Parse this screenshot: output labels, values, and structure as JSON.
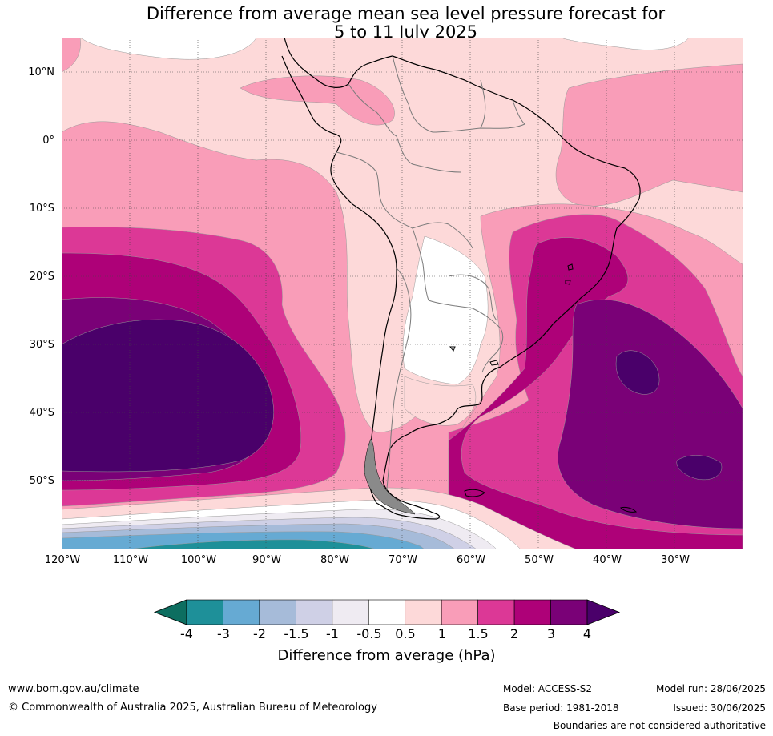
{
  "title_line1": "Difference from average mean sea level pressure forecast for",
  "title_line2": "5 to 11 July 2025",
  "lat_labels": [
    "10°N",
    "0°",
    "10°S",
    "20°S",
    "30°S",
    "40°S",
    "50°S"
  ],
  "lon_labels": [
    "120°W",
    "110°W",
    "100°W",
    "90°W",
    "80°W",
    "70°W",
    "60°W",
    "50°W",
    "40°W",
    "30°W"
  ],
  "colorbar": {
    "title": "Difference from average (hPa)",
    "ticks": [
      "-4",
      "-3",
      "-2",
      "-1.5",
      "-1",
      "-0.5",
      "0.5",
      "1",
      "1.5",
      "2",
      "3",
      "4"
    ],
    "colors": [
      "#0d6e60",
      "#1e9099",
      "#66aad3",
      "#a6bbd9",
      "#cfd0e6",
      "#efebf2",
      "#ffffff",
      "#fdd9d9",
      "#f99db8",
      "#dc3896",
      "#ae0178",
      "#7a0177",
      "#4a006a"
    ]
  },
  "footer": {
    "url": "www.bom.gov.au/climate",
    "copyright": "© Commonwealth of Australia 2025, Australian Bureau of Meteorology",
    "model": "Model: ACCESS-S2",
    "base_period": "Base period: 1981-2018",
    "model_run": "Model run: 28/06/2025",
    "issued": "Issued: 30/06/2025",
    "disclaimer": "Boundaries are not considered authoritative"
  }
}
